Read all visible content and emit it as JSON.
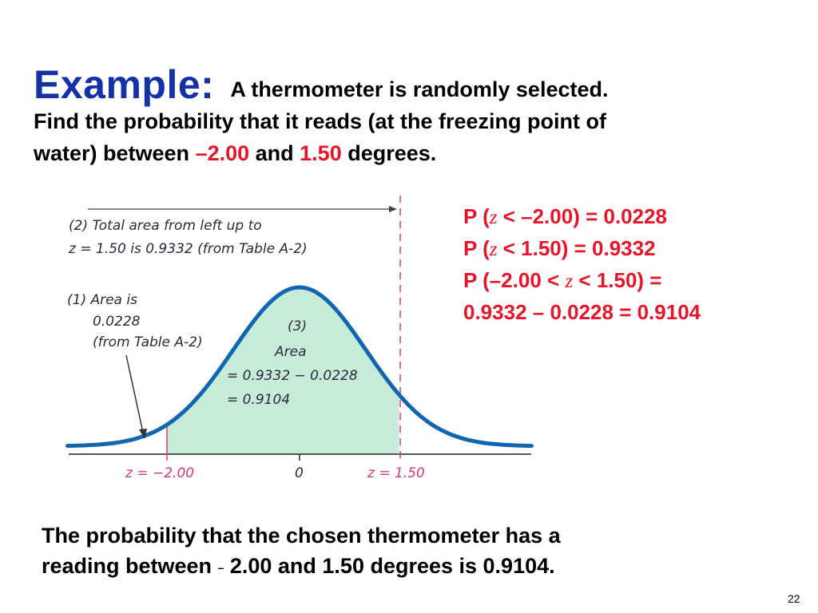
{
  "title": {
    "heading": "Example:",
    "line1": "A thermometer is randomly selected.",
    "line2": "Find the probability that it reads (at the freezing point of",
    "line3_a": "water) between ",
    "line3_val1": "–2.00",
    "line3_b": " and ",
    "line3_val2": "1.50",
    "line3_c": " degrees."
  },
  "diagram": {
    "note2_line1": "(2) Total area from left up to",
    "note2_line2": "z = 1.50 is 0.9332 (from Table A-2)",
    "note1_line1": "(1) Area is",
    "note1_line2": "0.0228",
    "note1_line3": "(from Table A-2)",
    "note3_line1": "(3)",
    "note3_line2": "Area",
    "note3_line3": "= 0.9332 − 0.0228",
    "note3_line4": "= 0.9104",
    "z_left": "z = −2.00",
    "z_zero": "0",
    "z_right": "z = 1.50"
  },
  "chart_data": {
    "type": "area",
    "distribution": "standard normal",
    "shaded_interval": [
      -2.0,
      1.5
    ],
    "xlim": [
      -3.5,
      3.5
    ],
    "tick_labels": [
      "z = −2.00",
      "0",
      "z = 1.50"
    ],
    "areas": {
      "left_of_-2.00": 0.0228,
      "left_of_1.50": 0.9332,
      "between": 0.9104
    }
  },
  "results": {
    "line1_a": "P (",
    "line1_z": "z",
    "line1_b": " < –2.00) = 0.0228",
    "line2_a": "P (",
    "line2_z": "z",
    "line2_b": " < 1.50) = 0.9332",
    "line3_a": "P (–2.00 < ",
    "line3_z": "z",
    "line3_b": " < 1.50) =",
    "line4_a": "0.9332 ",
    "line4_minus": "–",
    "line4_b": "  0.0228 = 0.9104"
  },
  "conclusion": {
    "line1": "The probability that the chosen thermometer has a",
    "line2_a": "reading between ",
    "line2_minus": "–",
    "line2_b": " 2.00 and 1.50 degrees is 0.9104."
  },
  "page_number": "22",
  "colors": {
    "title_blue": "#1531a8",
    "accent_red": "#e8142a",
    "curve_blue": "#1066b0",
    "fill_green": "#c6ecd9",
    "pink": "#d93a6c"
  }
}
